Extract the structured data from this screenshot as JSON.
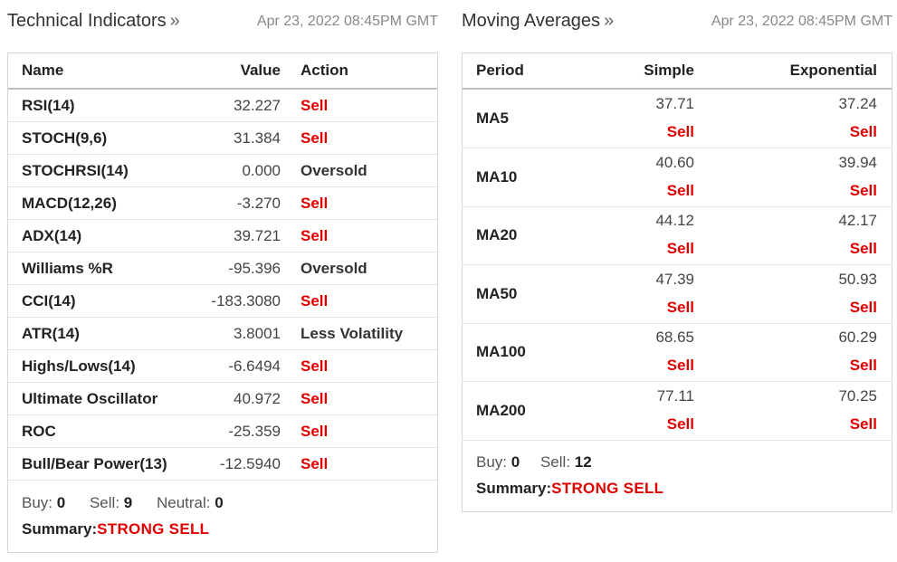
{
  "technical": {
    "title": "Technical Indicators",
    "arrow": "»",
    "date": "Apr 23, 2022 08:45PM GMT",
    "columns": {
      "name": "Name",
      "value": "Value",
      "action": "Action"
    },
    "rows": [
      {
        "name": "RSI(14)",
        "value": "32.227",
        "action": "Sell",
        "kind": "sell"
      },
      {
        "name": "STOCH(9,6)",
        "value": "31.384",
        "action": "Sell",
        "kind": "sell"
      },
      {
        "name": "STOCHRSI(14)",
        "value": "0.000",
        "action": "Oversold",
        "kind": "neutral"
      },
      {
        "name": "MACD(12,26)",
        "value": "-3.270",
        "action": "Sell",
        "kind": "sell"
      },
      {
        "name": "ADX(14)",
        "value": "39.721",
        "action": "Sell",
        "kind": "sell"
      },
      {
        "name": "Williams %R",
        "value": "-95.396",
        "action": "Oversold",
        "kind": "neutral"
      },
      {
        "name": "CCI(14)",
        "value": "-183.3080",
        "action": "Sell",
        "kind": "sell"
      },
      {
        "name": "ATR(14)",
        "value": "3.8001",
        "action": "Less Volatility",
        "kind": "neutral"
      },
      {
        "name": "Highs/Lows(14)",
        "value": "-6.6494",
        "action": "Sell",
        "kind": "sell"
      },
      {
        "name": "Ultimate Oscillator",
        "value": "40.972",
        "action": "Sell",
        "kind": "sell"
      },
      {
        "name": "ROC",
        "value": "-25.359",
        "action": "Sell",
        "kind": "sell"
      },
      {
        "name": "Bull/Bear Power(13)",
        "value": "-12.5940",
        "action": "Sell",
        "kind": "sell"
      }
    ],
    "counts": {
      "buy_label": "Buy:",
      "buy": "0",
      "sell_label": "Sell:",
      "sell": "9",
      "neutral_label": "Neutral:",
      "neutral": "0"
    },
    "summary_label": "Summary:",
    "summary_value": "STRONG SELL"
  },
  "moving_averages": {
    "title": "Moving Averages",
    "arrow": "»",
    "date": "Apr 23, 2022 08:45PM GMT",
    "columns": {
      "period": "Period",
      "simple": "Simple",
      "exponential": "Exponential"
    },
    "rows": [
      {
        "period": "MA5",
        "simple": "37.71",
        "simple_action": "Sell",
        "exponential": "37.24",
        "exponential_action": "Sell"
      },
      {
        "period": "MA10",
        "simple": "40.60",
        "simple_action": "Sell",
        "exponential": "39.94",
        "exponential_action": "Sell"
      },
      {
        "period": "MA20",
        "simple": "44.12",
        "simple_action": "Sell",
        "exponential": "42.17",
        "exponential_action": "Sell"
      },
      {
        "period": "MA50",
        "simple": "47.39",
        "simple_action": "Sell",
        "exponential": "50.93",
        "exponential_action": "Sell"
      },
      {
        "period": "MA100",
        "simple": "68.65",
        "simple_action": "Sell",
        "exponential": "60.29",
        "exponential_action": "Sell"
      },
      {
        "period": "MA200",
        "simple": "77.11",
        "simple_action": "Sell",
        "exponential": "70.25",
        "exponential_action": "Sell"
      }
    ],
    "counts": {
      "buy_label": "Buy:",
      "buy": "0",
      "sell_label": "Sell:",
      "sell": "12"
    },
    "summary_label": "Summary:",
    "summary_value": "STRONG SELL"
  },
  "colors": {
    "sell": "#e00000",
    "text": "#222222",
    "muted": "#888888",
    "border": "#d6d6d6"
  }
}
